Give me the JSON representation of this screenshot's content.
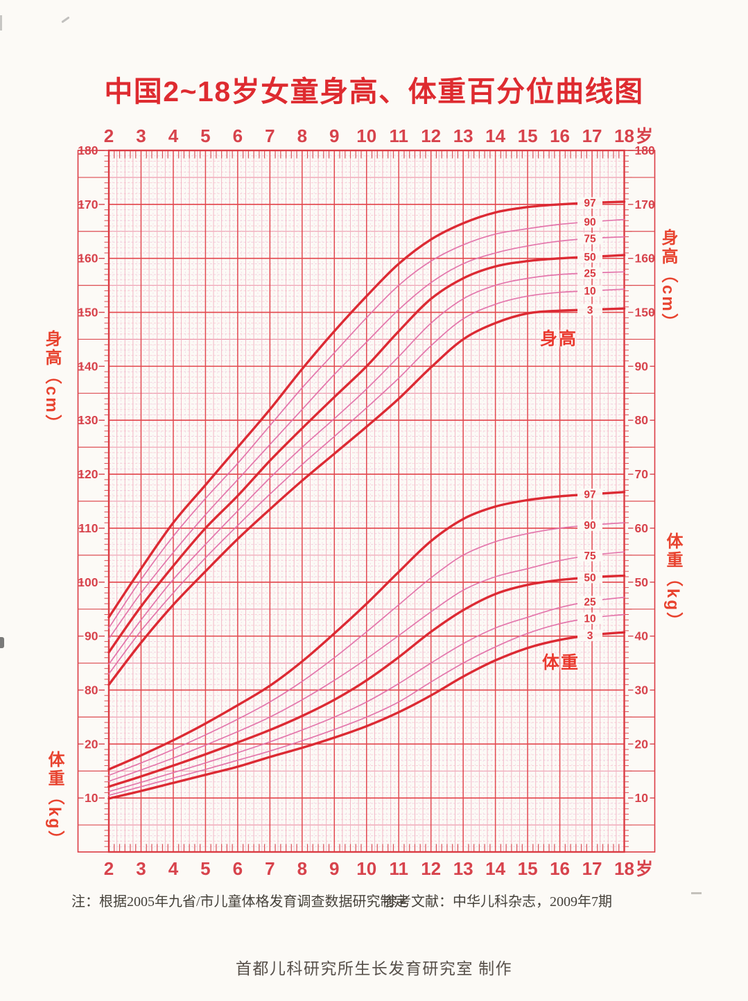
{
  "title": "中国2~18岁女童身高、体重百分位曲线图",
  "age_axis": {
    "ticks": [
      2,
      3,
      4,
      5,
      6,
      7,
      8,
      9,
      10,
      11,
      12,
      13,
      14,
      15,
      16,
      17,
      18
    ],
    "unit": "岁"
  },
  "left_axis": {
    "height_label": "身高（cm）",
    "height_ticks": [
      180,
      170,
      160,
      150,
      140,
      130,
      120,
      110,
      100,
      90,
      80
    ],
    "weight_label": "体重（kg）",
    "weight_ticks": [
      20,
      10
    ]
  },
  "right_axis": {
    "height_label": "身高（cm）",
    "height_ticks": [
      180,
      170,
      160,
      150
    ],
    "weight_label": "体重（kg）",
    "weight_ticks": [
      90,
      80,
      70,
      60,
      50,
      40,
      30,
      20,
      10
    ]
  },
  "curve_labels": {
    "height": "身高",
    "weight": "体重"
  },
  "percentiles": [
    "97",
    "90",
    "75",
    "50",
    "25",
    "10",
    "3"
  ],
  "notes": {
    "source": "注：根据2005年九省/市儿童体格发育调查数据研究制定",
    "reference": "参考文献：中华儿科杂志，2009年7期"
  },
  "footer": "首都儿科研究所生长发育研究室 制作",
  "colors": {
    "title_red": "#de2b30",
    "grid_major": "#e24349",
    "grid_year": "#e24850",
    "grid_mid": "#ec8fa4",
    "grid_minor_pink": "#f6c3cf",
    "grid_minor_lavender": "#eec3d8",
    "border_red": "#db3b43",
    "tick_text": "#d7434c",
    "curve_primary": "#dc2a33",
    "curve_secondary": "#e26fa8",
    "side_label_red": "#e8432f",
    "paper": "#fcfaf6"
  },
  "chart_data": {
    "type": "line",
    "title": "中国2~18岁女童身高、体重百分位曲线图",
    "x": [
      2,
      3,
      4,
      5,
      6,
      7,
      8,
      9,
      10,
      11,
      12,
      13,
      14,
      15,
      16,
      17,
      18
    ],
    "x_unit": "岁",
    "grid": true,
    "legend_position": "on-curve-right",
    "percentile_series_order": [
      "97",
      "90",
      "75",
      "50",
      "25",
      "10",
      "3"
    ],
    "groups": [
      {
        "measure": "身高",
        "unit": "cm",
        "ylim": [
          80,
          180
        ],
        "series": [
          {
            "name": "97",
            "values": [
              93.5,
              102.5,
              111,
              118,
              125,
              132,
              139.5,
              146.5,
              153,
              159,
              163.5,
              166.5,
              168.5,
              169.5,
              170,
              170.3,
              170.5
            ]
          },
          {
            "name": "90",
            "values": [
              91.5,
              100.5,
              108.5,
              115.5,
              122,
              129,
              136,
              142.5,
              149,
              155,
              159.5,
              162.5,
              164.5,
              165.5,
              166.3,
              166.8,
              167.2
            ]
          },
          {
            "name": "75",
            "values": [
              89.5,
              98,
              105.5,
              112.5,
              119,
              125.5,
              132,
              138.5,
              144.5,
              150.5,
              155.5,
              159,
              161,
              162.3,
              163.2,
              163.7,
              164
            ]
          },
          {
            "name": "50",
            "values": [
              87,
              95.5,
              103,
              110,
              116,
              122.5,
              128.5,
              134.3,
              140,
              146.5,
              152.5,
              156.3,
              158.5,
              159.5,
              160,
              160.3,
              160.6
            ]
          },
          {
            "name": "25",
            "values": [
              84.8,
              93,
              100.5,
              107,
              113.2,
              119.3,
              125,
              130.3,
              135.8,
              141.8,
              148,
              152.5,
              155,
              156.3,
              157,
              157.3,
              157.5
            ]
          },
          {
            "name": "10",
            "values": [
              83,
              91,
              98,
              104.5,
              110.5,
              116.3,
              121.8,
              127,
              132.3,
              137.8,
              143.8,
              148.8,
              151.5,
              153,
              153.7,
              154,
              154.3
            ]
          },
          {
            "name": "3",
            "values": [
              81,
              88.8,
              95.8,
              102,
              108,
              113.5,
              118.8,
              123.8,
              128.8,
              134,
              139.8,
              145,
              148,
              149.8,
              150.3,
              150.5,
              150.7
            ]
          }
        ]
      },
      {
        "measure": "体重",
        "unit": "kg",
        "ylim": [
          0,
          90
        ],
        "series": [
          {
            "name": "97",
            "values": [
              15.3,
              17.9,
              20.7,
              23.8,
              27.2,
              30.8,
              35.3,
              40.5,
              46,
              51.9,
              57.6,
              61.7,
              64,
              65.2,
              65.9,
              66.3,
              66.7
            ]
          },
          {
            "name": "90",
            "values": [
              14.2,
              16.5,
              19,
              21.7,
              24.6,
              27.8,
              31.6,
              36,
              40.8,
              45.8,
              50.8,
              55,
              57.5,
              59,
              60,
              60.6,
              61
            ]
          },
          {
            "name": "75",
            "values": [
              13.1,
              15.2,
              17.4,
              19.8,
              22.3,
              25,
              28.2,
              31.8,
              35.8,
              40.1,
              44.5,
              48.5,
              51,
              52.5,
              54,
              55,
              55.6
            ]
          },
          {
            "name": "50",
            "values": [
              12.1,
              14,
              16,
              18.1,
              20.3,
              22.6,
              25.2,
              28.2,
              31.8,
              36.1,
              40.8,
              44.8,
              47.8,
              49.5,
              50.4,
              50.9,
              51.2
            ]
          },
          {
            "name": "25",
            "values": [
              11.2,
              12.9,
              14.7,
              16.5,
              18.4,
              20.4,
              22.6,
              25,
              27.8,
              31.2,
              35,
              38.6,
              41.5,
              43.5,
              45.3,
              46.5,
              47.2
            ]
          },
          {
            "name": "10",
            "values": [
              10.5,
              12.1,
              13.7,
              15.3,
              17,
              18.7,
              20.6,
              22.7,
              25,
              27.8,
              31.5,
              35,
              38,
              40.5,
              42.3,
              43.4,
              44
            ]
          },
          {
            "name": "3",
            "values": [
              9.9,
              11.3,
              12.8,
              14.3,
              15.8,
              17.6,
              19.3,
              21.2,
              23.3,
              25.9,
              29,
              32.5,
              35.5,
              37.8,
              39.3,
              40.2,
              40.7
            ]
          }
        ]
      }
    ]
  }
}
